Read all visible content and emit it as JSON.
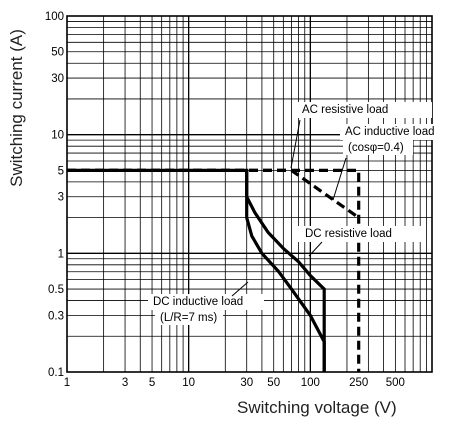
{
  "chart_data": {
    "type": "line",
    "title": "",
    "xlabel": "Switching voltage (V)",
    "ylabel": "Switching current (A)",
    "xscale": "log",
    "yscale": "log",
    "xlim": [
      1,
      1000
    ],
    "ylim": [
      0.1,
      100
    ],
    "grid": true,
    "x_ticks": [
      {
        "value": 1,
        "label": "1"
      },
      {
        "value": 3,
        "label": "3"
      },
      {
        "value": 5,
        "label": "5"
      },
      {
        "value": 10,
        "label": "10"
      },
      {
        "value": 30,
        "label": "30"
      },
      {
        "value": 50,
        "label": "50"
      },
      {
        "value": 100,
        "label": "100"
      },
      {
        "value": 250,
        "label": "250"
      },
      {
        "value": 500,
        "label": "500"
      }
    ],
    "y_ticks": [
      {
        "value": 0.1,
        "label": "0.1"
      },
      {
        "value": 0.3,
        "label": "0.3"
      },
      {
        "value": 0.5,
        "label": "0.5"
      },
      {
        "value": 1,
        "label": "1"
      },
      {
        "value": 3,
        "label": "3"
      },
      {
        "value": 5,
        "label": "5"
      },
      {
        "value": 10,
        "label": "10"
      },
      {
        "value": 30,
        "label": "30"
      },
      {
        "value": 50,
        "label": "50"
      },
      {
        "value": 100,
        "label": "100"
      }
    ],
    "series": [
      {
        "name": "AC resistive load",
        "style": "dashed",
        "points": [
          [
            1,
            5
          ],
          [
            250,
            5
          ],
          [
            250,
            0.1
          ]
        ]
      },
      {
        "name": "AC inductive load (cosφ=0.4)",
        "style": "dashed",
        "points": [
          [
            1,
            5
          ],
          [
            70,
            5
          ],
          [
            250,
            2
          ]
        ]
      },
      {
        "name": "DC resistive load",
        "style": "solid",
        "points": [
          [
            1,
            5
          ],
          [
            30,
            5
          ],
          [
            30,
            3
          ],
          [
            35,
            2.2
          ],
          [
            45,
            1.5
          ],
          [
            60,
            1.1
          ],
          [
            80,
            0.85
          ],
          [
            100,
            0.65
          ],
          [
            130,
            0.5
          ],
          [
            130,
            0.1
          ]
        ]
      },
      {
        "name": "DC inductive load (L/R=7 ms)",
        "style": "solid",
        "points": [
          [
            30,
            5
          ],
          [
            30,
            2
          ],
          [
            33,
            1.4
          ],
          [
            40,
            1.0
          ],
          [
            55,
            0.7
          ],
          [
            70,
            0.5
          ],
          [
            100,
            0.3
          ],
          [
            130,
            0.18
          ],
          [
            130,
            0.1
          ]
        ]
      }
    ],
    "annotations": [
      {
        "text": "AC resistive load"
      },
      {
        "text": "AC inductive load"
      },
      {
        "text": "(cosφ=0.4)"
      },
      {
        "text": "DC resistive load"
      },
      {
        "text": "DC inductive load"
      },
      {
        "text": "(L/R=7 ms)"
      }
    ]
  }
}
